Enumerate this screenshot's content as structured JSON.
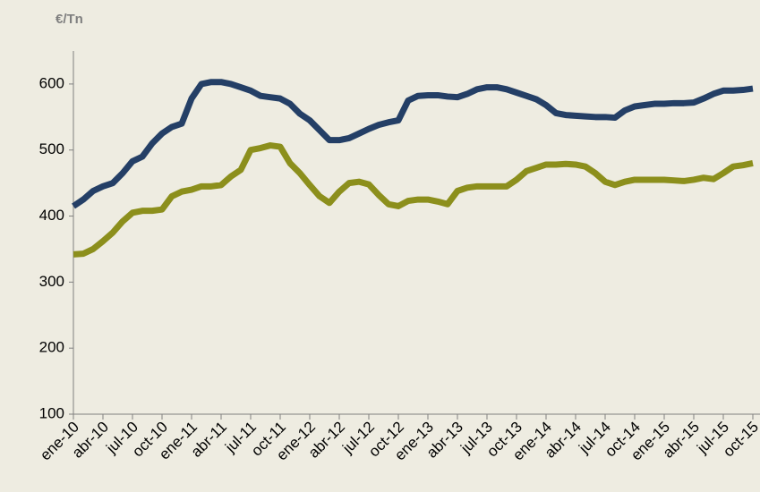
{
  "chart_data": {
    "type": "line",
    "y_label": "€/Tn",
    "categories": [
      "ene-10",
      null,
      null,
      "abr-10",
      null,
      null,
      "jul-10",
      null,
      null,
      "oct-10",
      null,
      null,
      "ene-11",
      null,
      null,
      "abr-11",
      null,
      null,
      "jul-11",
      null,
      null,
      "oct-11",
      null,
      null,
      "ene-12",
      null,
      null,
      "abr-12",
      null,
      null,
      "jul-12",
      null,
      null,
      "oct-12",
      null,
      null,
      "ene-13",
      null,
      null,
      "abr-13",
      null,
      null,
      "jul-13",
      null,
      null,
      "oct-13",
      null,
      null,
      "ene-14",
      null,
      null,
      "abr-14",
      null,
      null,
      "jul-14",
      null,
      null,
      "oct-14",
      null,
      null,
      "ene-15",
      null,
      null,
      "abr-15",
      null,
      null,
      "jul-15",
      null,
      null,
      "oct-15"
    ],
    "series": [
      {
        "color": "#243f66",
        "values": [
          415,
          425,
          438,
          445,
          450,
          465,
          483,
          490,
          510,
          525,
          535,
          540,
          578,
          600,
          603,
          603,
          600,
          595,
          590,
          582,
          580,
          578,
          570,
          555,
          545,
          530,
          515,
          515,
          518,
          525,
          532,
          538,
          542,
          545,
          575,
          582,
          583,
          583,
          581,
          580,
          585,
          592,
          595,
          595,
          592,
          587,
          582,
          577,
          568,
          556,
          553,
          552,
          551,
          550,
          550,
          549,
          560,
          566,
          568,
          570,
          570,
          571,
          571,
          572,
          578,
          585,
          590,
          590,
          591,
          593
        ]
      },
      {
        "color": "#8c8f1c",
        "values": [
          342,
          343,
          350,
          362,
          375,
          392,
          405,
          408,
          408,
          410,
          430,
          437,
          440,
          445,
          445,
          447,
          460,
          470,
          500,
          503,
          507,
          505,
          480,
          465,
          447,
          430,
          420,
          437,
          450,
          452,
          448,
          432,
          418,
          415,
          423,
          425,
          425,
          422,
          418,
          438,
          443,
          445,
          445,
          445,
          445,
          455,
          468,
          473,
          478,
          478,
          479,
          478,
          475,
          465,
          452,
          447,
          452,
          455,
          455,
          455,
          455,
          454,
          453,
          455,
          458,
          456,
          465,
          475,
          477,
          480
        ]
      }
    ],
    "ylim": [
      100,
      650
    ],
    "yticks": [
      100,
      200,
      300,
      400,
      500,
      600
    ]
  }
}
